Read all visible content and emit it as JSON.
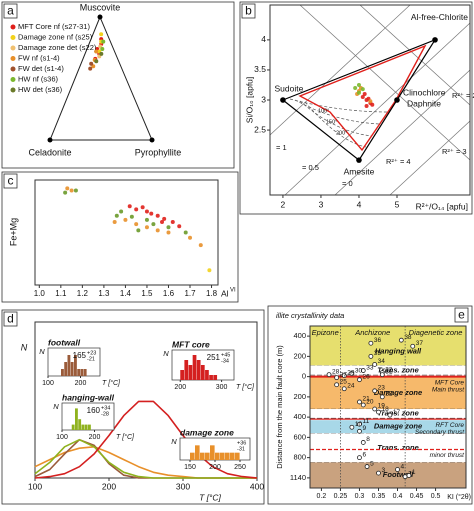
{
  "chart_data": [
    {
      "type": "ternary",
      "panel": "a",
      "vertices": [
        "Muscovite",
        "Celadonite",
        "Pyrophyllite"
      ],
      "series": [
        {
          "name": "MFT Core nf (s27-31)",
          "color": "#e0201b",
          "muscovite": [
            0.82,
            0.78,
            0.74,
            0.7,
            0.66
          ],
          "pyrophyllite": [
            0.1,
            0.12,
            0.1,
            0.14,
            0.12
          ]
        },
        {
          "name": "Damage zone nf (s25)",
          "color": "#f2d21b",
          "muscovite": [
            0.86,
            0.8,
            0.72
          ],
          "pyrophyllite": [
            0.08,
            0.11,
            0.13
          ]
        },
        {
          "name": "Damage zone det (s22)",
          "color": "#f0c070",
          "muscovite": [
            0.76,
            0.68
          ],
          "pyrophyllite": [
            0.12,
            0.15
          ]
        },
        {
          "name": "FW nf (s1-4)",
          "color": "#e8902a",
          "muscovite": [
            0.72,
            0.65,
            0.6
          ],
          "pyrophyllite": [
            0.1,
            0.12,
            0.13
          ]
        },
        {
          "name": "FW det (s1-4)",
          "color": "#a0522d",
          "muscovite": [
            0.62,
            0.58
          ],
          "pyrophyllite": [
            0.1,
            0.11
          ]
        },
        {
          "name": "HW nf (s36)",
          "color": "#7cb82f",
          "muscovite": [
            0.8,
            0.74
          ],
          "pyrophyllite": [
            0.13,
            0.15
          ]
        },
        {
          "name": "HW det (s36)",
          "color": "#6b7a2a",
          "muscovite": [
            0.7,
            0.64
          ],
          "pyrophyllite": [
            0.16,
            0.14
          ]
        }
      ]
    },
    {
      "type": "chlorite",
      "panel": "b",
      "xlabel": "R²⁺/O₁₄ [apfu]",
      "ylabel": "Si/O₁₀ [apfu]",
      "xlim": [
        1.66,
        6.92
      ],
      "ylim": [
        1.42,
        4.58
      ],
      "xticks": [
        2,
        3,
        4,
        5
      ],
      "yticks": [
        2.5,
        3,
        3.5,
        4
      ],
      "endmembers": [
        {
          "label": "Sudoite",
          "x": 2,
          "y": 3
        },
        {
          "label": "Al-free-Chlorite",
          "x": 6,
          "y": 4
        },
        {
          "label": "Clinochlore",
          "label2": "Daphnite",
          "x": 5,
          "y": 3
        },
        {
          "label": "Amesite",
          "x": 4,
          "y": 2
        }
      ],
      "annotations": [
        "= 1",
        "= 0.5",
        "= 0",
        "R²⁺ = 4",
        "R²⁺ = 3",
        "R²⁺ = 2",
        "100°",
        "150°",
        "200°"
      ],
      "series": [
        {
          "color": "#e0201b",
          "x": [
            4.1,
            4.2,
            4.3,
            4.15,
            4.25,
            4.35,
            4.2
          ],
          "values": [
            3.05,
            3.0,
            2.95,
            3.1,
            3.02,
            2.92,
            2.9
          ]
        },
        {
          "color": "#e8902a",
          "x": [
            4.0,
            3.95,
            4.05,
            4.3
          ],
          "values": [
            3.15,
            3.1,
            3.2,
            2.98
          ]
        },
        {
          "color": "#7cb82f",
          "x": [
            3.9,
            4.0,
            4.1,
            4.0
          ],
          "values": [
            3.2,
            3.12,
            3.18,
            3.25
          ]
        }
      ]
    },
    {
      "type": "scatter",
      "panel": "c",
      "xlabel": "Al",
      "xlabel_sup": "VI",
      "ylabel": "Fe+Mg",
      "xlim": [
        0.98,
        1.83
      ],
      "ylim": [
        0,
        1
      ],
      "xticks": [
        {
          "value": 1,
          "label": "1.0"
        },
        1.1,
        1.2,
        1.3,
        1.4,
        1.5,
        1.6,
        1.7,
        1.8
      ],
      "series": [
        {
          "color": "#e0201b",
          "x": [
            1.45,
            1.5,
            1.55,
            1.58,
            1.62,
            1.52,
            1.48,
            1.57,
            1.65,
            1.42
          ],
          "values": [
            0.72,
            0.7,
            0.66,
            0.63,
            0.6,
            0.68,
            0.74,
            0.6,
            0.56,
            0.75
          ]
        },
        {
          "color": "#e8902a",
          "x": [
            1.13,
            1.15,
            1.4,
            1.45,
            1.5,
            1.6,
            1.7,
            1.75,
            1.55,
            1.35
          ],
          "values": [
            0.92,
            0.9,
            0.62,
            0.58,
            0.55,
            0.5,
            0.45,
            0.38,
            0.52,
            0.6
          ]
        },
        {
          "color": "#6a9a2a",
          "x": [
            1.12,
            1.17,
            1.38,
            1.43,
            1.5,
            1.53,
            1.6,
            1.68,
            1.46,
            1.36
          ],
          "values": [
            0.88,
            0.9,
            0.7,
            0.65,
            0.62,
            0.58,
            0.55,
            0.5,
            0.52,
            0.66
          ]
        },
        {
          "color": "#f2d21b",
          "x": [
            1.79
          ],
          "values": [
            0.14
          ]
        }
      ]
    },
    {
      "type": "density",
      "panel": "d",
      "xlabel": "T [°C]",
      "ylabel": "N",
      "xlim": [
        100,
        400
      ],
      "ylim": [
        0,
        1.1
      ],
      "xticks": [
        100,
        200,
        300,
        400
      ],
      "x": [
        100,
        120,
        140,
        160,
        180,
        200,
        220,
        240,
        260,
        280,
        300,
        320,
        340,
        360,
        380,
        400
      ],
      "series": [
        {
          "color": "#e8902a",
          "values": [
            0.08,
            0.13,
            0.18,
            0.21,
            0.22,
            0.18,
            0.13,
            0.08,
            0.04,
            0.02,
            0.01,
            0,
            0,
            0,
            0,
            0
          ]
        },
        {
          "color": "#9a5b3a",
          "values": [
            0.01,
            0.06,
            0.17,
            0.27,
            0.23,
            0.1,
            0.02,
            0,
            0,
            0,
            0,
            0,
            0,
            0,
            0,
            0
          ]
        },
        {
          "color": "#8fb21e",
          "values": [
            0.03,
            0.11,
            0.22,
            0.27,
            0.22,
            0.11,
            0.04,
            0.01,
            0,
            0,
            0,
            0,
            0,
            0,
            0,
            0
          ]
        },
        {
          "color": "#d42020",
          "values": [
            0,
            0.01,
            0.03,
            0.08,
            0.17,
            0.3,
            0.44,
            0.54,
            0.54,
            0.44,
            0.3,
            0.17,
            0.08,
            0.03,
            0.01,
            0
          ]
        }
      ],
      "insets": [
        {
          "title": "footwall",
          "ylabel": "N",
          "xlabel": "T [°C]",
          "color": "#9a5b3a",
          "xlim": [
            100,
            260
          ],
          "xticks": [
            100,
            200
          ],
          "ylim": [
            0,
            4
          ],
          "bins": [
            140,
            150,
            160,
            170,
            180,
            190,
            200,
            210,
            220
          ],
          "counts": [
            1,
            2,
            3,
            2,
            3,
            1,
            1,
            1
          ],
          "stat": "165",
          "plus": "+23",
          "minus": "-21"
        },
        {
          "title": "hanging-wall",
          "ylabel": "N",
          "xlabel": "T [°C]",
          "color": "#8fb21e",
          "xlim": [
            100,
            260
          ],
          "xticks": [
            100,
            200
          ],
          "ylim": [
            0,
            5
          ],
          "bins": [
            130,
            140,
            150,
            160,
            170,
            180,
            190
          ],
          "counts": [
            1,
            4,
            2,
            1,
            1,
            1
          ],
          "stat": "160",
          "plus": "+34",
          "minus": "-28"
        },
        {
          "title": "MFT core",
          "ylabel": "N",
          "xlabel": "T [°C]",
          "color": "#d42020",
          "xlim": [
            180,
            330
          ],
          "xticks": [
            200,
            300
          ],
          "ylim": [
            0,
            6
          ],
          "bins": [
            200,
            210,
            220,
            230,
            240,
            250,
            260,
            270,
            280,
            290
          ],
          "counts": [
            2,
            4,
            3,
            5,
            4,
            3,
            2,
            1,
            1
          ],
          "stat": "251",
          "plus": "+45",
          "minus": "-34"
        },
        {
          "title": "damage zone",
          "ylabel": "N",
          "color": "#e8902a",
          "xlim": [
            130,
            270
          ],
          "xticks": [
            150,
            200,
            250
          ],
          "ylim": [
            0,
            3
          ],
          "bins": [
            150,
            160,
            170,
            180,
            190,
            200,
            210,
            220,
            230,
            240,
            250
          ],
          "counts": [
            1,
            2,
            1,
            1,
            2,
            1,
            1,
            1,
            1,
            1
          ],
          "plus": "+36",
          "minus": "-31"
        }
      ]
    },
    {
      "type": "profile",
      "panel": "e",
      "title": "illite crystallinity data",
      "xlabel": "KI (°2θ)",
      "ylabel": "Distance from the main fault core (m)",
      "xlim": [
        0.17,
        0.58
      ],
      "xticks": [
        0.2,
        0.25,
        0.3,
        0.35,
        0.4,
        0.45,
        0.5
      ],
      "ylim": [
        -500,
        1240
      ],
      "yticks": [
        {
          "value": -400,
          "label": "400"
        },
        {
          "value": -200,
          "label": "200"
        },
        0,
        200,
        400,
        600,
        800,
        1140
      ],
      "headers": [
        "Epizone",
        "Anchizone",
        "Diagenetic zone"
      ],
      "kubler": [
        0.25,
        0.42
      ],
      "zones": [
        {
          "name": "Hanging wall",
          "from": -500,
          "to": -110,
          "color": "#e6df6e"
        },
        {
          "name": "Trans. zone",
          "from": -110,
          "to": -15,
          "color": "#ffffff"
        },
        {
          "name": "Damage zone",
          "from": 0,
          "to": 320,
          "color": "#f6b96b"
        },
        {
          "name": "Trans. zone",
          "from": 320,
          "to": 410,
          "color": "#ffffff"
        },
        {
          "name": "Damage zone",
          "from": 430,
          "to": 560,
          "color": "#a8d8e8"
        },
        {
          "name": "Trans. zone",
          "from": 560,
          "to": 880,
          "color": "#ffffff"
        },
        {
          "name": "Footwall",
          "from": 880,
          "to": 1240,
          "color": "#c9a27f"
        }
      ],
      "faults": [
        {
          "name": "MFT Core",
          "sub": "Main thrust",
          "at": 0
        },
        {
          "name": "RFT Core",
          "sub": "Secondary thrust",
          "at": 420
        },
        {
          "name": "minor thrust",
          "at": 720
        }
      ],
      "samples": [
        "38",
        "37",
        "36",
        "35",
        "34",
        "33",
        "32",
        "31",
        "30",
        "29",
        "28",
        "27",
        "26",
        "25",
        "24",
        "23",
        "22",
        "21",
        "20",
        "19",
        "18",
        "17",
        "11",
        "10",
        "9",
        "8",
        "6",
        "5",
        "4",
        "3",
        "2",
        "1"
      ],
      "ki": [
        0.41,
        0.44,
        0.33,
        0.33,
        0.34,
        0.31,
        0.36,
        0.36,
        0.28,
        0.26,
        0.22,
        0.24,
        0.3,
        0.24,
        0.26,
        0.34,
        0.36,
        0.3,
        0.31,
        0.34,
        0.35,
        0.38,
        0.3,
        0.28,
        0.3,
        0.31,
        0.3,
        0.32,
        0.4,
        0.35,
        0.42,
        0.43
      ],
      "distance": [
        -360,
        -300,
        -330,
        -200,
        -120,
        -60,
        -40,
        -20,
        -30,
        -10,
        -20,
        10,
        30,
        80,
        120,
        140,
        200,
        250,
        280,
        320,
        350,
        380,
        470,
        500,
        540,
        650,
        800,
        950,
        1000,
        1060,
        1120,
        1100
      ]
    }
  ]
}
